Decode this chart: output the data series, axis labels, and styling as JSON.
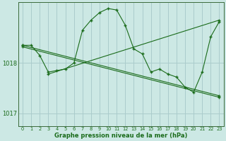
{
  "background_color": "#cce8e4",
  "plot_bg_color": "#cce8e4",
  "grid_major_color": "#aacccc",
  "grid_minor_color": "#bbdddd",
  "line_color": "#1a6b1a",
  "xlabel": "Graphe pression niveau de la mer (hPa)",
  "xlim": [
    -0.5,
    23.5
  ],
  "ylim": [
    1016.75,
    1019.2
  ],
  "yticks": [
    1017,
    1018
  ],
  "xticks": [
    0,
    1,
    2,
    3,
    4,
    5,
    6,
    7,
    8,
    9,
    10,
    11,
    12,
    13,
    14,
    15,
    16,
    17,
    18,
    19,
    20,
    21,
    22,
    23
  ],
  "series1_x": [
    0,
    1,
    2,
    3,
    4,
    5,
    6,
    7,
    8,
    9,
    10,
    11,
    12,
    13,
    14,
    15,
    16,
    17,
    18,
    19,
    20,
    21,
    22,
    23
  ],
  "series1_y": [
    1018.35,
    1018.35,
    1018.15,
    1017.82,
    1017.85,
    1017.88,
    1018.0,
    1018.65,
    1018.85,
    1019.0,
    1019.08,
    1019.05,
    1018.75,
    1018.28,
    1018.18,
    1017.82,
    1017.88,
    1017.78,
    1017.72,
    1017.52,
    1017.42,
    1017.82,
    1018.52,
    1018.82
  ],
  "series2_x": [
    0,
    23
  ],
  "series2_y": [
    1018.35,
    1017.35
  ],
  "series3_x": [
    3,
    23
  ],
  "series3_y": [
    1017.78,
    1018.85
  ],
  "series4_x": [
    0,
    20
  ],
  "series4_y": [
    1018.35,
    1017.35
  ],
  "series4_markers_x": [
    0,
    3,
    6,
    14,
    19,
    20
  ],
  "series4_markers_y": [
    1018.35,
    1017.85,
    1017.78,
    1017.78,
    1017.42,
    1017.35
  ],
  "series5_markers_x": [
    3,
    7,
    14,
    19,
    21,
    22,
    23
  ],
  "series5_markers_y": [
    1017.78,
    1017.78,
    1018.18,
    1017.52,
    1017.82,
    1018.52,
    1018.85
  ]
}
